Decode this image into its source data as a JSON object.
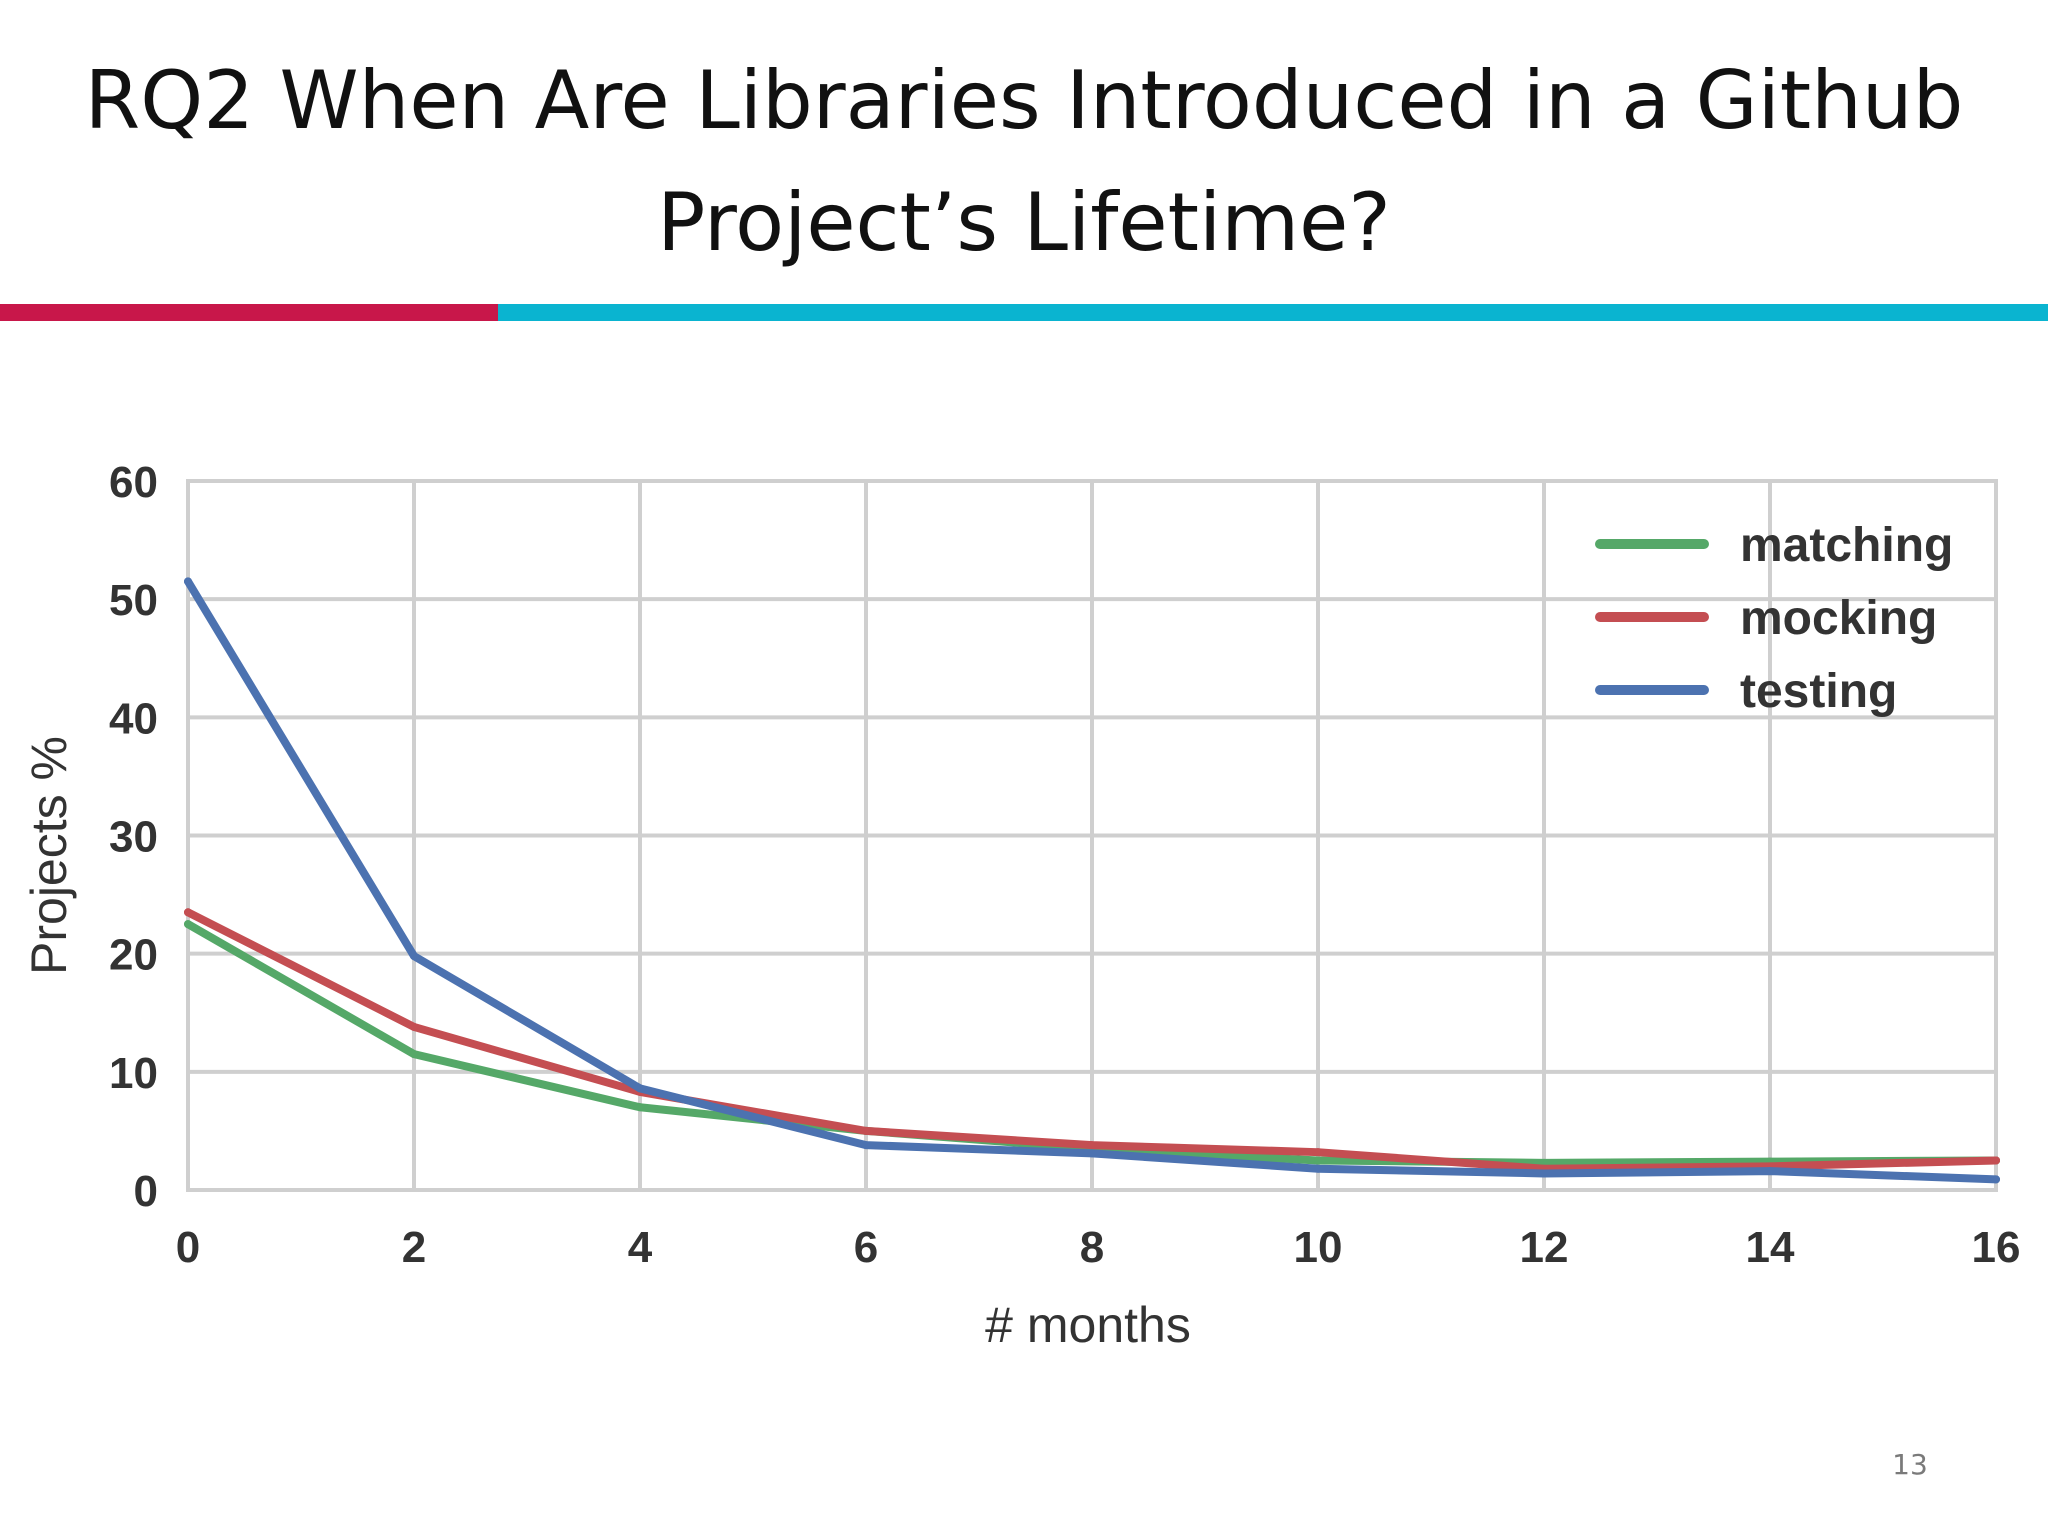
{
  "slide": {
    "title_line1": "RQ2 When Are Libraries Introduced in a Github",
    "title_line2": "Project’s Lifetime?",
    "page_number": "13",
    "accent_colors": [
      "#c8174a",
      "#0ab4d0"
    ]
  },
  "chart_data": {
    "type": "line",
    "title": "",
    "xlabel": "# months",
    "ylabel": "Projects %",
    "xlim": [
      0,
      16
    ],
    "ylim": [
      0,
      60
    ],
    "xticks": [
      0,
      2,
      4,
      6,
      8,
      10,
      12,
      14,
      16
    ],
    "yticks": [
      0,
      10,
      20,
      30,
      40,
      50,
      60
    ],
    "grid": true,
    "legend_position": "top-right",
    "x": [
      0,
      2,
      4,
      6,
      8,
      10,
      12,
      14,
      16
    ],
    "series": [
      {
        "name": "matching",
        "color": "#55a868",
        "values": [
          22.5,
          11.5,
          7.0,
          5.0,
          3.5,
          2.5,
          2.3,
          2.4,
          2.5
        ]
      },
      {
        "name": "mocking",
        "color": "#c44e52",
        "values": [
          23.5,
          13.8,
          8.3,
          5.0,
          3.8,
          3.2,
          1.8,
          2.0,
          2.5
        ]
      },
      {
        "name": "testing",
        "color": "#4c72b0",
        "values": [
          51.5,
          19.8,
          8.6,
          3.8,
          3.1,
          1.8,
          1.4,
          1.6,
          0.9
        ]
      }
    ]
  }
}
